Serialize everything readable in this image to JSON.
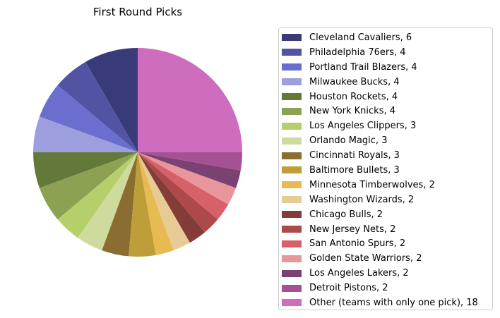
{
  "chart_data": {
    "type": "pie",
    "title": "First Round Picks",
    "legend_position": "right",
    "slices": [
      {
        "label": "Cleveland Cavaliers, 6",
        "value": 6,
        "color": "#393b79"
      },
      {
        "label": "Philadelphia 76ers, 4",
        "value": 4,
        "color": "#5254a3"
      },
      {
        "label": "Portland Trail Blazers, 4",
        "value": 4,
        "color": "#6b6ecf"
      },
      {
        "label": "Milwaukee Bucks, 4",
        "value": 4,
        "color": "#9c9ede"
      },
      {
        "label": "Houston Rockets, 4",
        "value": 4,
        "color": "#637939"
      },
      {
        "label": "New York Knicks, 4",
        "value": 4,
        "color": "#8ca252"
      },
      {
        "label": "Los Angeles Clippers, 3",
        "value": 3,
        "color": "#b5cf6b"
      },
      {
        "label": "Orlando Magic, 3",
        "value": 3,
        "color": "#cedb9c"
      },
      {
        "label": "Cincinnati Royals, 3",
        "value": 3,
        "color": "#8c6d31"
      },
      {
        "label": "Baltimore Bullets, 3",
        "value": 3,
        "color": "#bd9e39"
      },
      {
        "label": "Minnesota Timberwolves, 2",
        "value": 2,
        "color": "#e7ba52"
      },
      {
        "label": "Washington Wizards, 2",
        "value": 2,
        "color": "#e7cb94"
      },
      {
        "label": "Chicago Bulls, 2",
        "value": 2,
        "color": "#843c39"
      },
      {
        "label": "New Jersey Nets, 2",
        "value": 2,
        "color": "#ad494a"
      },
      {
        "label": "San Antonio Spurs, 2",
        "value": 2,
        "color": "#d6616b"
      },
      {
        "label": "Golden State Warriors, 2",
        "value": 2,
        "color": "#e7969c"
      },
      {
        "label": "Los Angeles Lakers, 2",
        "value": 2,
        "color": "#7b4173"
      },
      {
        "label": "Detroit Pistons, 2",
        "value": 2,
        "color": "#a55194"
      },
      {
        "label": "Other (teams with only one pick), 18",
        "value": 18,
        "color": "#ce6dbd"
      }
    ]
  }
}
